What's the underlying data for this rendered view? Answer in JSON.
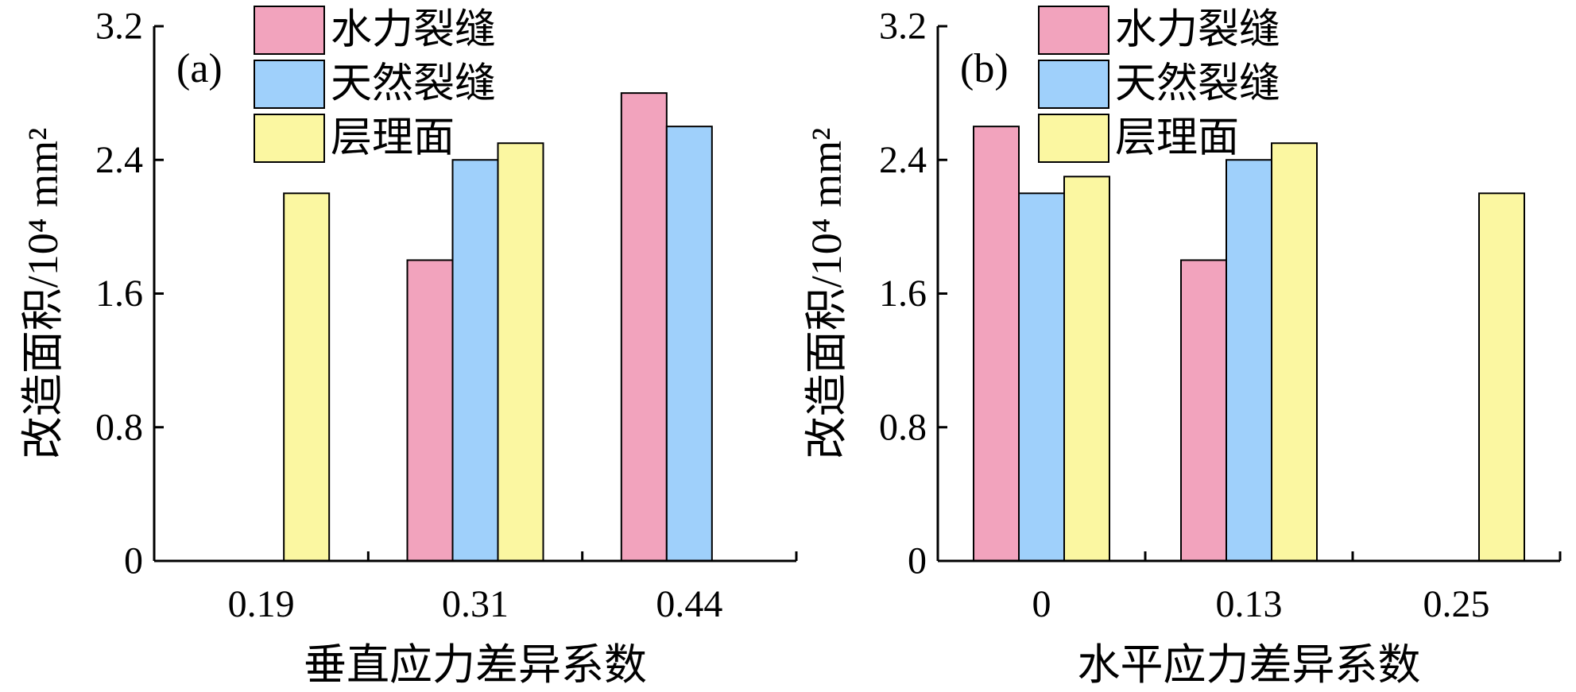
{
  "chart_data": [
    {
      "type": "bar",
      "panel_label": "(a)",
      "xlabel": "垂直应力差异系数",
      "ylabel": "改造面积/10⁴ mm²",
      "categories": [
        "0.19",
        "0.31",
        "0.44"
      ],
      "ylim": [
        0,
        3.2
      ],
      "yticks": [
        "0",
        "0.8",
        "1.6",
        "2.4",
        "3.2"
      ],
      "legend_position": "top-left",
      "series": [
        {
          "name": "水力裂缝",
          "color": "#f2a3bd",
          "values": [
            0,
            1.8,
            2.8
          ]
        },
        {
          "name": "天然裂缝",
          "color": "#9fd0fb",
          "values": [
            0,
            2.4,
            2.6
          ]
        },
        {
          "name": "层理面",
          "color": "#fbf7a1",
          "values": [
            2.2,
            2.5,
            0
          ]
        }
      ]
    },
    {
      "type": "bar",
      "panel_label": "(b)",
      "xlabel": "水平应力差异系数",
      "ylabel": "改造面积/10⁴ mm²",
      "categories": [
        "0",
        "0.13",
        "0.25"
      ],
      "ylim": [
        0,
        3.2
      ],
      "yticks": [
        "0",
        "0.8",
        "1.6",
        "2.4",
        "3.2"
      ],
      "legend_position": "top-left",
      "series": [
        {
          "name": "水力裂缝",
          "color": "#f2a3bd",
          "values": [
            2.6,
            1.8,
            0
          ]
        },
        {
          "name": "天然裂缝",
          "color": "#9fd0fb",
          "values": [
            2.2,
            2.4,
            0
          ]
        },
        {
          "name": "层理面",
          "color": "#fbf7a1",
          "values": [
            2.3,
            2.5,
            2.2
          ]
        }
      ]
    }
  ]
}
